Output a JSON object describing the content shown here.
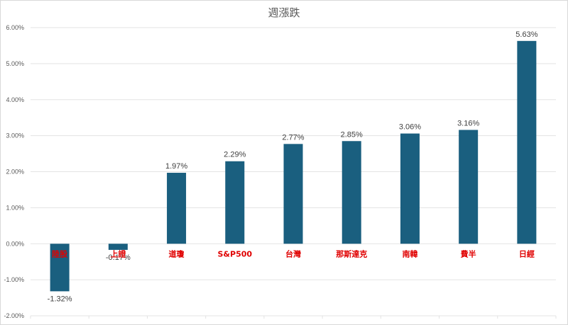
{
  "chart_data": {
    "type": "bar",
    "title": "週漲跌",
    "categories": [
      "陸股",
      "上證",
      "道瓊",
      "S&P500",
      "台灣",
      "那斯達克",
      "南韓",
      "費半",
      "日經"
    ],
    "values": [
      -1.32,
      -0.17,
      1.97,
      2.29,
      2.77,
      2.85,
      3.06,
      3.16,
      5.63
    ],
    "data_labels": [
      "-1.32%",
      "-0.17%",
      "1.97%",
      "2.29%",
      "2.77%",
      "2.85%",
      "3.06%",
      "3.16%",
      "5.63%"
    ],
    "y_ticks": [
      6,
      5,
      4,
      3,
      2,
      1,
      0,
      -1,
      -2
    ],
    "y_tick_labels": [
      "6.00%",
      "5.00%",
      "4.00%",
      "3.00%",
      "2.00%",
      "1.00%",
      "0.00%",
      "-1.00%",
      "-2.00%"
    ],
    "ylim": [
      -2,
      6
    ],
    "bar_color": "#1a5f7f",
    "category_label_color": "#e00000",
    "grid": true,
    "legend": "none",
    "xlabel": "",
    "ylabel": ""
  }
}
